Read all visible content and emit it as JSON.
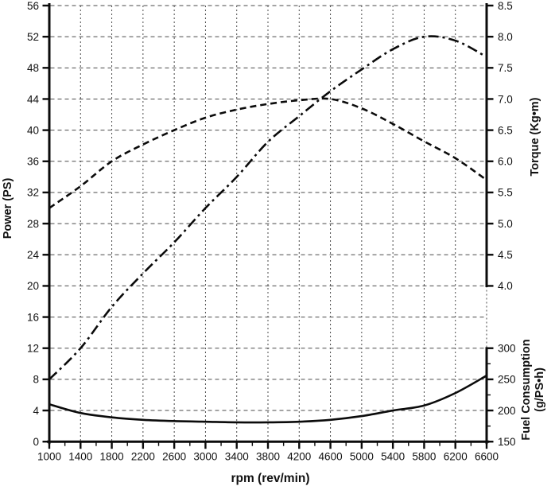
{
  "chart_data": {
    "type": "line",
    "title": "",
    "legend": "none",
    "grid": "on",
    "colors": {
      "curves": "#0b0b0b",
      "gridlines": "#4a4a4a",
      "background": "#ffffff"
    },
    "x_axis": {
      "title": "rpm (rev/min)",
      "min": 1000,
      "max": 6600,
      "major_step": 400,
      "minor_step": 200,
      "tick_labels": [
        "1000",
        "1400",
        "1800",
        "2200",
        "2600",
        "3000",
        "3400",
        "3800",
        "4200",
        "4600",
        "5000",
        "5400",
        "5800",
        "6200",
        "6600"
      ]
    },
    "left_axis": {
      "title": "Power (PS)",
      "min": 0,
      "max": 56,
      "major_step": 4,
      "tick_labels": [
        "56",
        "52",
        "48",
        "44",
        "40",
        "36",
        "32",
        "28",
        "24",
        "20",
        "16",
        "12",
        "8",
        "4",
        "0"
      ]
    },
    "right_top_axis": {
      "title": "Torque (Kg•m)",
      "min": 4.0,
      "max": 8.5,
      "major_step": 0.5,
      "tick_labels": [
        "8.5",
        "8.0",
        "7.5",
        "7.0",
        "6.5",
        "6.0",
        "5.5",
        "5.0",
        "4.5",
        "4.0"
      ]
    },
    "right_bottom_axis": {
      "title_line1": "Fuel Consumption",
      "title_line2": "(g/PS•h)",
      "min": 150,
      "max": 300,
      "major_step": 50,
      "minor_step": 25,
      "tick_labels": [
        "300",
        "250",
        "200",
        "150"
      ]
    },
    "x": [
      1000,
      1400,
      1800,
      2200,
      2600,
      3000,
      3400,
      3800,
      4200,
      4600,
      5000,
      5400,
      5800,
      6200,
      6600
    ],
    "series": [
      {
        "id": "power",
        "label": "Power (PS)",
        "axis": "left",
        "style": "dashdot",
        "values": [
          8,
          12,
          17.3,
          21.6,
          25.6,
          30,
          34,
          38.5,
          41.8,
          45,
          47.8,
          50.4,
          52,
          51.5,
          49.4
        ]
      },
      {
        "id": "torque",
        "label": "Torque (Kg•m)",
        "axis": "right_top",
        "style": "dashed",
        "values": [
          5.25,
          5.6,
          6.0,
          6.27,
          6.5,
          6.7,
          6.83,
          6.92,
          6.98,
          7.0,
          6.85,
          6.6,
          6.32,
          6.05,
          5.7
        ]
      },
      {
        "id": "fuel",
        "label": "Fuel Consumption (g/PS•h)",
        "axis": "right_bottom",
        "style": "solid",
        "values": [
          210,
          196,
          189,
          185,
          183,
          182,
          181,
          181,
          182,
          185,
          191,
          200,
          208,
          228,
          256
        ]
      }
    ]
  }
}
